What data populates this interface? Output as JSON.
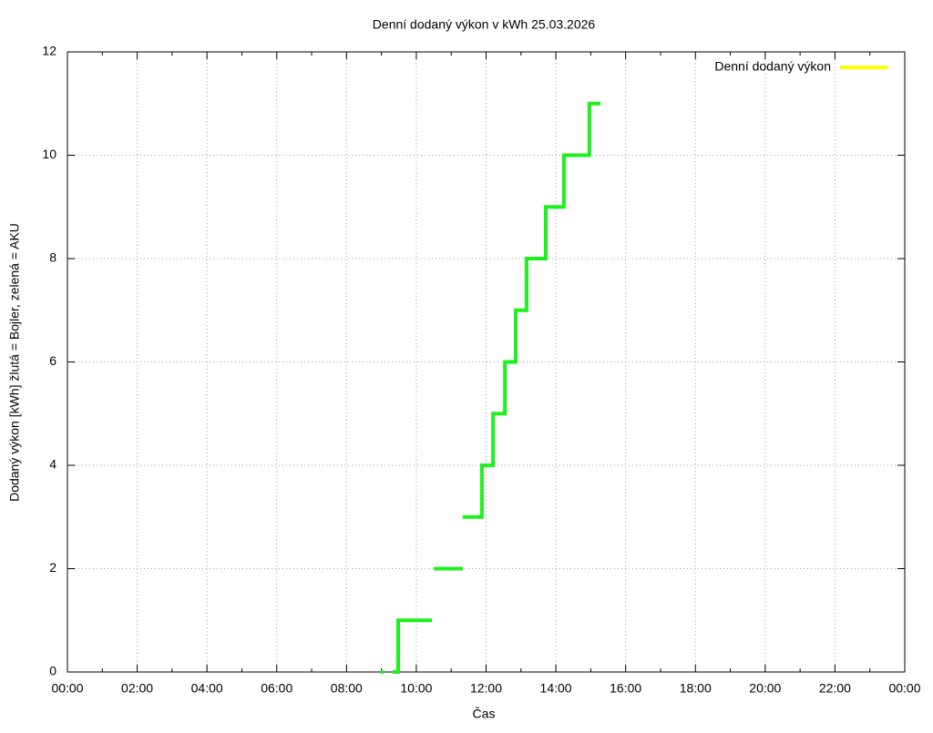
{
  "chart_data": {
    "type": "line",
    "title": "Denní dodaný výkon v kWh 25.03.2026",
    "x_label": "Čas",
    "y_label": "Dodaný výkon [kWh]  žlutá = Bojler, zelená = AKU",
    "xlim": [
      0,
      24
    ],
    "xticks": [
      {
        "value": 0,
        "label": "00:00"
      },
      {
        "value": 2,
        "label": "02:00"
      },
      {
        "value": 4,
        "label": "04:00"
      },
      {
        "value": 6,
        "label": "06:00"
      },
      {
        "value": 8,
        "label": "08:00"
      },
      {
        "value": 10,
        "label": "10:00"
      },
      {
        "value": 12,
        "label": "12:00"
      },
      {
        "value": 14,
        "label": "14:00"
      },
      {
        "value": 16,
        "label": "16:00"
      },
      {
        "value": 18,
        "label": "18:00"
      },
      {
        "value": 20,
        "label": "20:00"
      },
      {
        "value": 22,
        "label": "22:00"
      },
      {
        "value": 24,
        "label": "00:00"
      }
    ],
    "xminorticks": [
      1,
      3,
      5,
      7,
      9,
      11,
      13,
      15,
      17,
      19,
      21,
      23
    ],
    "ylim": [
      0,
      12
    ],
    "yticks": [
      0,
      2,
      4,
      6,
      8,
      10,
      12
    ],
    "grid": true,
    "legend": "top-right",
    "legend_line_color": "#ffff00",
    "series": [
      {
        "name": "Denní dodaný výkon",
        "color": "#1ef01e",
        "x": [
          8.98,
          9.06,
          null,
          9.32,
          9.48,
          9.48,
          10.45,
          null,
          10.5,
          11.33,
          null,
          11.33,
          11.88,
          11.88,
          12.2,
          12.2,
          12.54,
          12.54,
          12.85,
          12.85,
          13.16,
          13.16,
          13.71,
          13.71,
          14.23,
          14.23,
          14.96,
          14.96,
          15.28
        ],
        "values": [
          0,
          0,
          null,
          0,
          0,
          1,
          1,
          null,
          2,
          2,
          null,
          3,
          3,
          4,
          4,
          5,
          5,
          6,
          6,
          7,
          7,
          8,
          8,
          9,
          9,
          10,
          10,
          11,
          11
        ]
      }
    ]
  }
}
